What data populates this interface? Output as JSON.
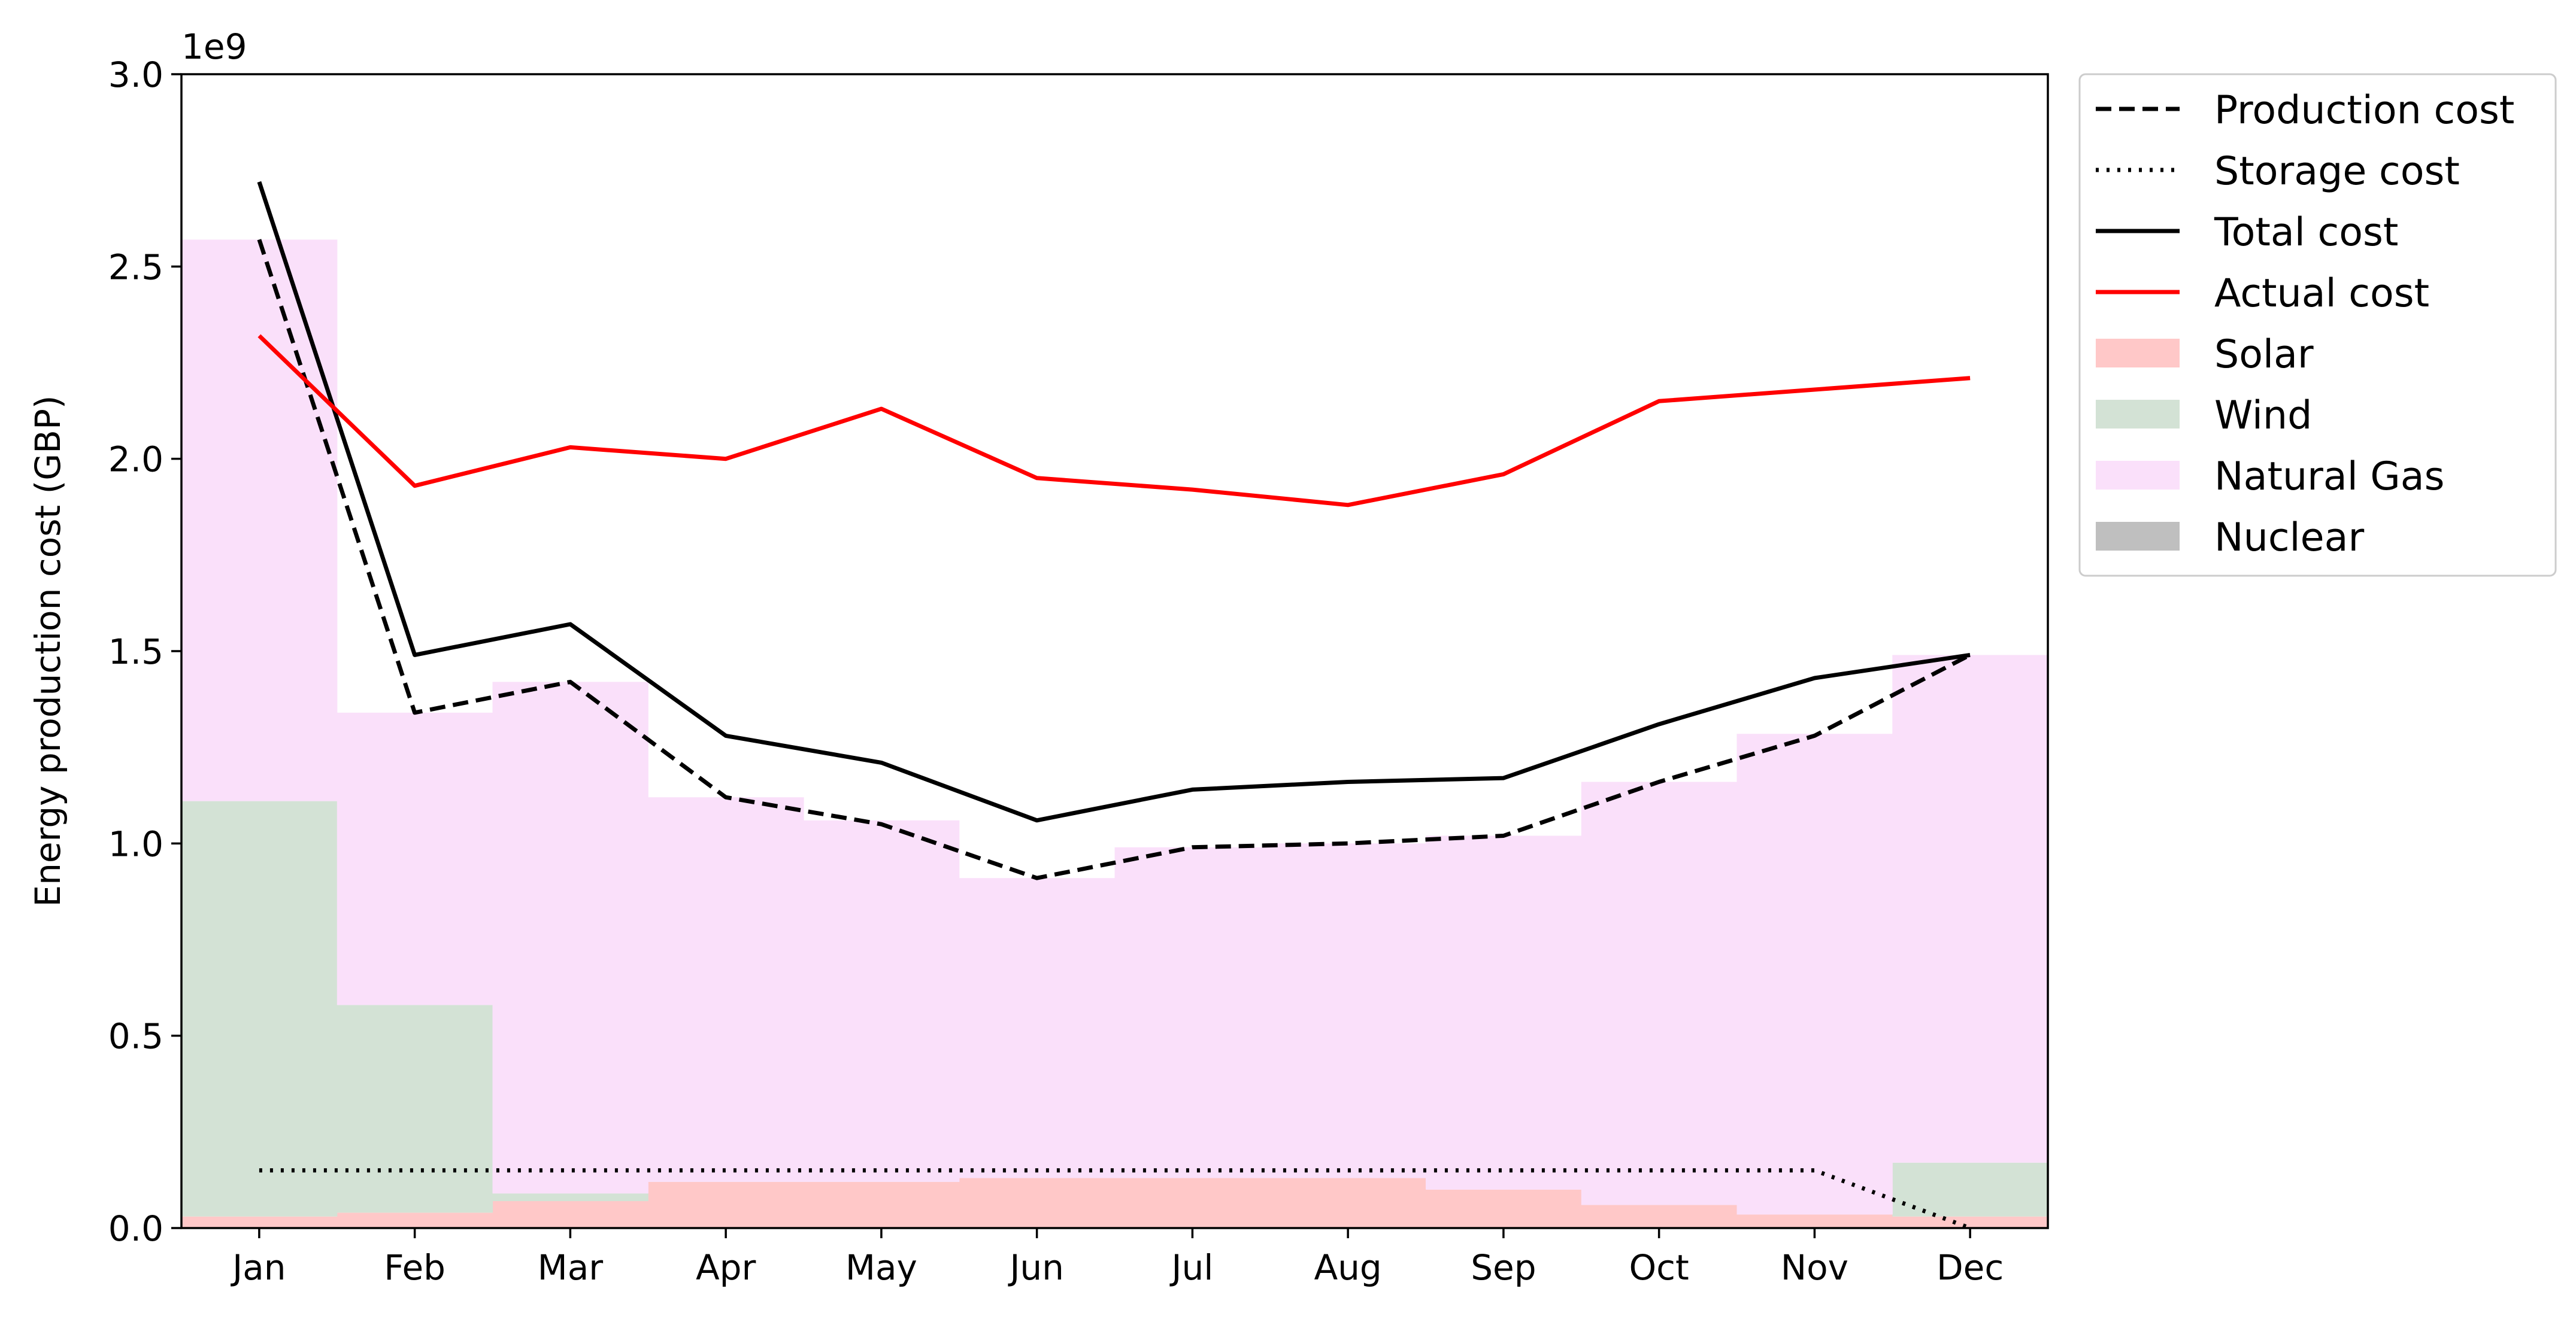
{
  "chart_data": {
    "type": "line",
    "ylabel": "Energy production cost (GBP)",
    "y_offset_label": "1e9",
    "y_scale": 1000000000,
    "ylim": [
      0,
      3.0
    ],
    "yticks": [
      0.0,
      0.5,
      1.0,
      1.5,
      2.0,
      2.5,
      3.0
    ],
    "ytick_labels": [
      "0.0",
      "0.5",
      "1.0",
      "1.5",
      "2.0",
      "2.5",
      "3.0"
    ],
    "categories": [
      "Jan",
      "Feb",
      "Mar",
      "Apr",
      "May",
      "Jun",
      "Jul",
      "Aug",
      "Sep",
      "Oct",
      "Nov",
      "Dec"
    ],
    "grid": false,
    "legend_position": "outside-right-top",
    "stacked_areas": [
      {
        "name": "Solar",
        "color": "#ffc8c8",
        "values": [
          0.03,
          0.04,
          0.07,
          0.12,
          0.12,
          0.13,
          0.13,
          0.13,
          0.1,
          0.06,
          0.035,
          0.03
        ]
      },
      {
        "name": "Wind",
        "color": "#d3e2d5",
        "values": [
          1.08,
          0.54,
          0.02,
          0.0,
          0.0,
          0.0,
          0.0,
          0.0,
          0.0,
          0.0,
          0.0,
          0.14
        ]
      },
      {
        "name": "Natural Gas",
        "color": "#fae0fa",
        "values": [
          1.46,
          0.76,
          1.33,
          1.0,
          0.94,
          0.78,
          0.86,
          0.87,
          0.92,
          1.1,
          1.25,
          1.32
        ]
      },
      {
        "name": "Nuclear",
        "color": "#bfbfbf",
        "values": [
          0,
          0,
          0,
          0,
          0,
          0,
          0,
          0,
          0,
          0,
          0,
          0
        ]
      }
    ],
    "series": [
      {
        "name": "Production cost",
        "color": "#000000",
        "style": "dashed",
        "values": [
          2.57,
          1.34,
          1.42,
          1.12,
          1.05,
          0.91,
          0.99,
          1.0,
          1.02,
          1.16,
          1.28,
          1.49
        ]
      },
      {
        "name": "Storage cost",
        "color": "#000000",
        "style": "dotted",
        "values": [
          0.15,
          0.15,
          0.15,
          0.15,
          0.15,
          0.15,
          0.15,
          0.15,
          0.15,
          0.15,
          0.15,
          0.0
        ]
      },
      {
        "name": "Total cost",
        "color": "#000000",
        "style": "solid",
        "values": [
          2.72,
          1.49,
          1.57,
          1.28,
          1.21,
          1.06,
          1.14,
          1.16,
          1.17,
          1.31,
          1.43,
          1.49
        ]
      },
      {
        "name": "Actual cost",
        "color": "#ff0000",
        "style": "solid",
        "values": [
          2.32,
          1.93,
          2.03,
          2.0,
          2.13,
          1.95,
          1.92,
          1.88,
          1.96,
          2.15,
          2.18,
          2.21
        ]
      }
    ],
    "legend": [
      "Production cost",
      "Storage cost",
      "Total cost",
      "Actual cost",
      "Solar",
      "Wind",
      "Natural Gas",
      "Nuclear"
    ]
  }
}
